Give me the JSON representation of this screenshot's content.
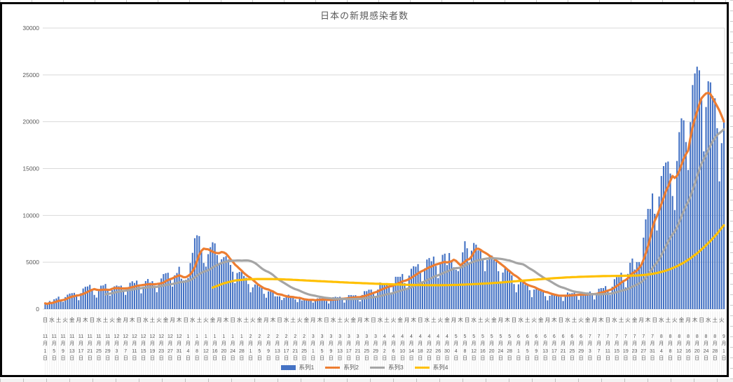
{
  "title": "日本の新規感染者数",
  "colors": {
    "bar": "#4472C4",
    "line2": "#ED7D31",
    "line3": "#A5A5A5",
    "line4": "#FFC000",
    "gridline": "#D9D9D9",
    "axis_text": "#595959",
    "stripe": "#ECECEC"
  },
  "legend": [
    {
      "label": "系列1",
      "type": "bar",
      "color": "#4472C4"
    },
    {
      "label": "系列2",
      "type": "line",
      "color": "#ED7D31"
    },
    {
      "label": "系列3",
      "type": "line",
      "color": "#A5A5A5"
    },
    {
      "label": "系列4",
      "type": "line",
      "color": "#FFC000"
    }
  ],
  "y_axis": {
    "min": 0,
    "max": 30000,
    "step": 5000,
    "tick_labels": [
      "0",
      "5000",
      "10000",
      "15000",
      "20000",
      "25000",
      "30000"
    ]
  },
  "x_axis": {
    "weekday_cycle": [
      "日",
      "月",
      "火",
      "水",
      "木",
      "金",
      "土"
    ],
    "first_weekday_index": 0,
    "weekday_label_interval_days": 3,
    "date_label_interval_days": 4,
    "date_labels": [
      "11月1日",
      "11月5日",
      "11月9日",
      "11月13日",
      "11月17日",
      "11月21日",
      "11月25日",
      "11月29日",
      "12月3日",
      "12月7日",
      "12月11日",
      "12月15日",
      "12月19日",
      "12月23日",
      "12月27日",
      "12月31日",
      "1月4日",
      "1月8日",
      "1月12日",
      "1月16日",
      "1月20日",
      "1月24日",
      "1月28日",
      "2月1日",
      "2月5日",
      "2月9日",
      "2月13日",
      "2月17日",
      "2月21日",
      "2月25日",
      "3月1日",
      "3月5日",
      "3月9日",
      "3月13日",
      "3月17日",
      "3月21日",
      "3月25日",
      "3月29日",
      "4月2日",
      "4月6日",
      "4月10日",
      "4月14日",
      "4月18日",
      "4月22日",
      "4月26日",
      "4月30日",
      "5月4日",
      "5月8日",
      "5月12日",
      "5月16日",
      "5月20日",
      "5月24日",
      "5月28日",
      "6月1日",
      "6月5日",
      "6月9日",
      "6月13日",
      "6月17日",
      "6月21日",
      "6月25日",
      "6月29日",
      "7月3日",
      "7月7日",
      "7月11日",
      "7月15日",
      "7月19日",
      "7月23日",
      "7月27日",
      "7月31日",
      "8月4日",
      "8月8日",
      "8月12日",
      "8月16日",
      "8月20日",
      "8月24日",
      "8月28日",
      "9月1日"
    ]
  },
  "chart_data": {
    "type": "bar",
    "title": "日本の新規感染者数",
    "n_days": 305,
    "x_first_label": "11月1日",
    "x_last_label": "9月1日",
    "ylim": [
      0,
      30000
    ],
    "grid": true,
    "legend_position": "bottom",
    "series": [
      {
        "name": "系列1",
        "kind": "bar",
        "color": "#4472C4",
        "values": [
          614,
          487,
          867,
          620,
          1050,
          1141,
          1331,
          950,
          780,
          1284,
          1543,
          1661,
          1704,
          1736,
          1438,
          950,
          1699,
          2201,
          2386,
          2418,
          2592,
          2168,
          1515,
          1229,
          1928,
          2504,
          2531,
          2684,
          2066,
          1438,
          2030,
          2430,
          2518,
          2442,
          2508,
          2058,
          1515,
          2152,
          2810,
          2969,
          2790,
          3041,
          2388,
          1680,
          2410,
          2994,
          3211,
          2829,
          2982,
          2501,
          1806,
          2688,
          3271,
          3742,
          3832,
          3881,
          3125,
          2403,
          3610,
          3852,
          4520,
          3246,
          3059,
          3127,
          3325,
          4915,
          6004,
          7570,
          7882,
          7790,
          6097,
          4925,
          4535,
          5870,
          6610,
          7133,
          7014,
          5759,
          4925,
          5320,
          5549,
          5653,
          5292,
          4717,
          3990,
          2764,
          3853,
          3971,
          4133,
          3539,
          3344,
          2673,
          1792,
          2324,
          2631,
          2576,
          2372,
          2277,
          1632,
          1216,
          1887,
          1887,
          1933,
          1362,
          1362,
          1364,
          965,
          1194,
          1448,
          1538,
          1301,
          1234,
          1032,
          740,
          1084,
          922,
          1076,
          1083,
          997,
          999,
          697,
          888,
          1149,
          1173,
          1150,
          1049,
          866,
          599,
          972,
          1277,
          1316,
          1271,
          1320,
          989,
          695,
          1133,
          1500,
          1499,
          1463,
          1486,
          1121,
          815,
          1510,
          1917,
          1918,
          2072,
          2083,
          1785,
          1348,
          2087,
          2843,
          2597,
          2770,
          2774,
          2472,
          1571,
          2654,
          3451,
          3449,
          3451,
          3747,
          2776,
          2091,
          3579,
          4309,
          4576,
          4532,
          4802,
          3901,
          2905,
          4342,
          5292,
          5452,
          5113,
          5605,
          4605,
          3318,
          4965,
          5792,
          5918,
          4698,
          5986,
          5032,
          4470,
          4199,
          4056,
          4365,
          6058,
          7244,
          6493,
          4938,
          6243,
          7057,
          6879,
          6263,
          6421,
          5261,
          4048,
          5230,
          5815,
          5720,
          5252,
          5040,
          4048,
          2729,
          3901,
          4536,
          4141,
          3955,
          3604,
          2674,
          1791,
          2644,
          3037,
          2838,
          2588,
          2650,
          2018,
          1271,
          2087,
          2243,
          2042,
          1937,
          1937,
          1387,
          935,
          1420,
          1709,
          1554,
          1605,
          1521,
          1305,
          868,
          1437,
          1777,
          1661,
          1704,
          1744,
          1390,
          993,
          1523,
          1816,
          1754,
          1777,
          1879,
          1485,
          1030,
          1671,
          2180,
          2246,
          2248,
          2455,
          2020,
          1506,
          2386,
          3194,
          3418,
          3423,
          3886,
          3103,
          2329,
          3758,
          4943,
          5397,
          4225,
          5020,
          5020,
          4692,
          7629,
          9576,
          10699,
          10686,
          12342,
          10177,
          8393,
          12017,
          14207,
          15263,
          15645,
          15753,
          14472,
          12073,
          10574,
          15812,
          18889,
          20365,
          20151,
          17832,
          14854,
          19955,
          23917,
          25156,
          25876,
          25488,
          22284,
          16841,
          21570,
          24321,
          24200,
          22750,
          22501,
          19313,
          13638,
          17713,
          20031
        ]
      },
      {
        "name": "系列2",
        "kind": "line",
        "color": "#ED7D31",
        "derivation": "7-day moving average of 系列1"
      },
      {
        "name": "系列3",
        "kind": "line",
        "color": "#A5A5A5",
        "derivation": "28-day moving average of 系列1",
        "start_index": 27
      },
      {
        "name": "系列4",
        "kind": "line",
        "color": "#FFC000",
        "anchors": [
          [
            75,
            2300
          ],
          [
            80,
            2750
          ],
          [
            85,
            3050
          ],
          [
            90,
            3170
          ],
          [
            95,
            3210
          ],
          [
            100,
            3210
          ],
          [
            105,
            3190
          ],
          [
            110,
            3140
          ],
          [
            115,
            3080
          ],
          [
            120,
            3020
          ],
          [
            125,
            2960
          ],
          [
            130,
            2900
          ],
          [
            135,
            2840
          ],
          [
            140,
            2790
          ],
          [
            145,
            2740
          ],
          [
            150,
            2690
          ],
          [
            155,
            2650
          ],
          [
            160,
            2610
          ],
          [
            165,
            2580
          ],
          [
            170,
            2560
          ],
          [
            175,
            2550
          ],
          [
            180,
            2560
          ],
          [
            185,
            2590
          ],
          [
            190,
            2640
          ],
          [
            195,
            2700
          ],
          [
            200,
            2770
          ],
          [
            205,
            2860
          ],
          [
            210,
            2960
          ],
          [
            215,
            3060
          ],
          [
            220,
            3160
          ],
          [
            225,
            3250
          ],
          [
            230,
            3330
          ],
          [
            235,
            3400
          ],
          [
            240,
            3450
          ],
          [
            245,
            3490
          ],
          [
            250,
            3520
          ],
          [
            255,
            3540
          ],
          [
            260,
            3560
          ],
          [
            265,
            3590
          ],
          [
            268,
            3640
          ],
          [
            271,
            3720
          ],
          [
            274,
            3850
          ],
          [
            277,
            4030
          ],
          [
            280,
            4270
          ],
          [
            283,
            4580
          ],
          [
            286,
            4960
          ],
          [
            289,
            5420
          ],
          [
            292,
            5960
          ],
          [
            295,
            6580
          ],
          [
            298,
            7280
          ],
          [
            301,
            8060
          ],
          [
            304,
            8950
          ]
        ]
      }
    ]
  }
}
